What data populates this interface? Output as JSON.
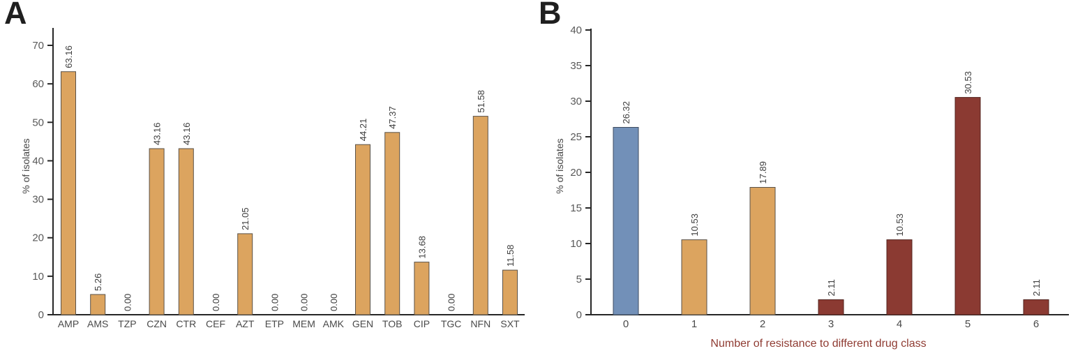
{
  "figure": {
    "background": "#ffffff",
    "panel_a_letter": "A",
    "panel_b_letter": "B"
  },
  "colors": {
    "axis": "#262626",
    "tick_label": "#595959",
    "category_label": "#4a4a4a",
    "value_label": "#3d3d3d",
    "ylabel": "#454545",
    "tan": "#DCA45F",
    "tan_edge": "#5a5248",
    "blue": "#7290B8",
    "blue_edge": "#3f4d61",
    "maroon": "#8B3A32",
    "maroon_edge": "#53241f",
    "xlabel_b": "#8F3B32"
  },
  "chart_data": [
    {
      "type": "bar",
      "panel_label": "A",
      "title": "",
      "xlabel": "",
      "ylabel": "% of isolates",
      "categories": [
        "AMP",
        "AMS",
        "TZP",
        "CZN",
        "CTR",
        "CEF",
        "AZT",
        "ETP",
        "MEM",
        "AMK",
        "GEN",
        "TOB",
        "CIP",
        "TGC",
        "NFN",
        "SXT"
      ],
      "values": [
        63.16,
        5.26,
        0.0,
        43.16,
        43.16,
        0.0,
        21.05,
        0.0,
        0.0,
        0.0,
        44.21,
        47.37,
        13.68,
        0.0,
        51.58,
        11.58
      ],
      "value_labels": [
        "63.16",
        "5.26",
        "0.00",
        "43.16",
        "43.16",
        "0.00",
        "21.05",
        "0.00",
        "0.00",
        "0.00",
        "44.21",
        "47.37",
        "13.68",
        "0.00",
        "51.58",
        "11.58"
      ],
      "bar_colors": [
        "#DCA45F",
        "#DCA45F",
        "#DCA45F",
        "#DCA45F",
        "#DCA45F",
        "#DCA45F",
        "#DCA45F",
        "#DCA45F",
        "#DCA45F",
        "#DCA45F",
        "#DCA45F",
        "#DCA45F",
        "#DCA45F",
        "#DCA45F",
        "#DCA45F",
        "#DCA45F"
      ],
      "bar_edge_colors": [
        "#5a5248",
        "#5a5248",
        "#5a5248",
        "#5a5248",
        "#5a5248",
        "#5a5248",
        "#5a5248",
        "#5a5248",
        "#5a5248",
        "#5a5248",
        "#5a5248",
        "#5a5248",
        "#5a5248",
        "#5a5248",
        "#5a5248",
        "#5a5248"
      ],
      "ylim": [
        0,
        70
      ],
      "ytick_step": 10,
      "grid": false,
      "legend": null,
      "value_label_rotation": -90
    },
    {
      "type": "bar",
      "panel_label": "B",
      "title": "",
      "xlabel": "Number of resistance to different drug class",
      "xlabel_color": "#8F3B32",
      "ylabel": "% of isolates",
      "categories": [
        "0",
        "1",
        "2",
        "3",
        "4",
        "5",
        "6"
      ],
      "values": [
        26.32,
        10.53,
        17.89,
        2.11,
        10.53,
        30.53,
        2.11
      ],
      "value_labels": [
        "26.32",
        "10.53",
        "17.89",
        "2.11",
        "10.53",
        "30.53",
        "2.11"
      ],
      "bar_colors": [
        "#7290B8",
        "#DCA45F",
        "#DCA45F",
        "#8B3A32",
        "#8B3A32",
        "#8B3A32",
        "#8B3A32"
      ],
      "bar_edge_colors": [
        "#3f4d61",
        "#5a5248",
        "#5a5248",
        "#53241f",
        "#53241f",
        "#53241f",
        "#53241f"
      ],
      "ylim": [
        0,
        40
      ],
      "ytick_step": 5,
      "grid": false,
      "legend": null,
      "value_label_rotation": -90
    }
  ]
}
